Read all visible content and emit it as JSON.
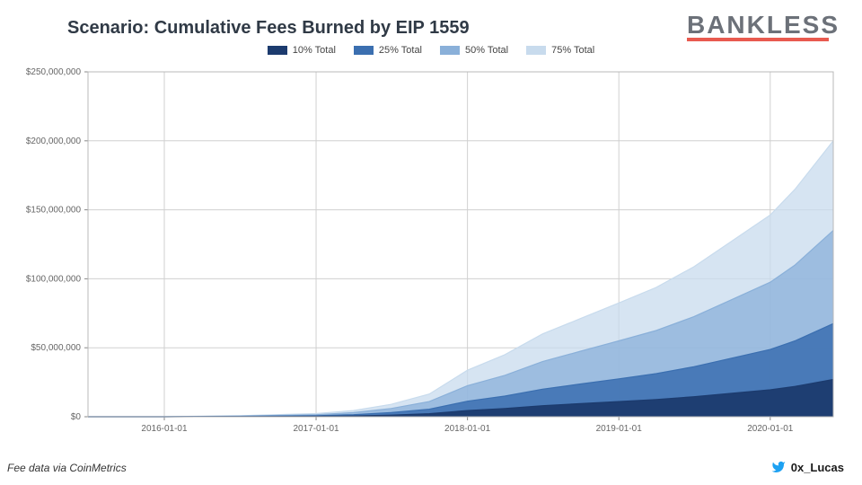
{
  "title": "Scenario: Cumulative Fees Burned by EIP 1559",
  "brand": "BANKLESS",
  "brand_underline_color": "#e85a4f",
  "footer_left_prefix": "Fee data via ",
  "footer_left_source": "CoinMetrics",
  "footer_right_handle": "0x_Lucas",
  "twitter_color": "#1da1f2",
  "chart": {
    "type": "area",
    "background_color": "#ffffff",
    "grid_color": "#d0d0d0",
    "axis_label_color": "#666666",
    "axis_label_fontsize": 10,
    "ylim": [
      0,
      250000000
    ],
    "ytick_step": 50000000,
    "y_ticks": [
      {
        "v": 0,
        "label": "$0"
      },
      {
        "v": 50000000,
        "label": "$50,000,000"
      },
      {
        "v": 100000000,
        "label": "$100,000,000"
      },
      {
        "v": 150000000,
        "label": "$150,000,000"
      },
      {
        "v": 200000000,
        "label": "$200,000,000"
      },
      {
        "v": 250000000,
        "label": "$250,000,000"
      }
    ],
    "x_range": [
      "2015-07-01",
      "2020-06-01"
    ],
    "x_ticks": [
      {
        "d": "2016-01-01",
        "label": "2016-01-01"
      },
      {
        "d": "2017-01-01",
        "label": "2017-01-01"
      },
      {
        "d": "2018-01-01",
        "label": "2018-01-01"
      },
      {
        "d": "2019-01-01",
        "label": "2019-01-01"
      },
      {
        "d": "2020-01-01",
        "label": "2020-01-01"
      }
    ],
    "legend": [
      {
        "label": "10% Total",
        "color": "#1c3b6e"
      },
      {
        "label": "25% Total",
        "color": "#3b6fb0"
      },
      {
        "label": "50% Total",
        "color": "#8ab0d9"
      },
      {
        "label": "75% Total",
        "color": "#c8dbed"
      }
    ],
    "series_order_back_to_front": [
      "75% Total",
      "50% Total",
      "25% Total",
      "10% Total"
    ],
    "series": {
      "10% Total": {
        "color": "#1c3b6e",
        "fill_opacity": 0.95,
        "line_width": 1.2,
        "points": [
          [
            "2015-07-01",
            0
          ],
          [
            "2016-01-01",
            0
          ],
          [
            "2016-07-01",
            100000
          ],
          [
            "2017-01-01",
            300000
          ],
          [
            "2017-04-01",
            600000
          ],
          [
            "2017-07-01",
            1200000
          ],
          [
            "2017-10-01",
            2200000
          ],
          [
            "2018-01-01",
            4500000
          ],
          [
            "2018-04-01",
            6000000
          ],
          [
            "2018-07-01",
            8000000
          ],
          [
            "2018-10-01",
            9500000
          ],
          [
            "2019-01-01",
            11000000
          ],
          [
            "2019-04-01",
            12500000
          ],
          [
            "2019-07-01",
            14500000
          ],
          [
            "2019-10-01",
            17000000
          ],
          [
            "2020-01-01",
            19500000
          ],
          [
            "2020-03-01",
            22000000
          ],
          [
            "2020-06-01",
            27000000
          ]
        ]
      },
      "25% Total": {
        "color": "#3b6fb0",
        "fill_opacity": 0.85,
        "line_width": 1.2,
        "points": [
          [
            "2015-07-01",
            0
          ],
          [
            "2016-01-01",
            0
          ],
          [
            "2016-07-01",
            250000
          ],
          [
            "2017-01-01",
            750000
          ],
          [
            "2017-04-01",
            1500000
          ],
          [
            "2017-07-01",
            3000000
          ],
          [
            "2017-10-01",
            5500000
          ],
          [
            "2018-01-01",
            11250000
          ],
          [
            "2018-04-01",
            15000000
          ],
          [
            "2018-07-01",
            20000000
          ],
          [
            "2018-10-01",
            23750000
          ],
          [
            "2019-01-01",
            27500000
          ],
          [
            "2019-04-01",
            31250000
          ],
          [
            "2019-07-01",
            36250000
          ],
          [
            "2019-10-01",
            42500000
          ],
          [
            "2020-01-01",
            48750000
          ],
          [
            "2020-03-01",
            55000000
          ],
          [
            "2020-06-01",
            67500000
          ]
        ]
      },
      "50% Total": {
        "color": "#8ab0d9",
        "fill_opacity": 0.75,
        "line_width": 1.2,
        "points": [
          [
            "2015-07-01",
            0
          ],
          [
            "2016-01-01",
            0
          ],
          [
            "2016-07-01",
            500000
          ],
          [
            "2017-01-01",
            1500000
          ],
          [
            "2017-04-01",
            3000000
          ],
          [
            "2017-07-01",
            6000000
          ],
          [
            "2017-10-01",
            11000000
          ],
          [
            "2018-01-01",
            22500000
          ],
          [
            "2018-04-01",
            30000000
          ],
          [
            "2018-07-01",
            40000000
          ],
          [
            "2018-10-01",
            47500000
          ],
          [
            "2019-01-01",
            55000000
          ],
          [
            "2019-04-01",
            62500000
          ],
          [
            "2019-07-01",
            72500000
          ],
          [
            "2019-10-01",
            85000000
          ],
          [
            "2020-01-01",
            97500000
          ],
          [
            "2020-03-01",
            110000000
          ],
          [
            "2020-06-01",
            135000000
          ]
        ]
      },
      "75% Total": {
        "color": "#c8dbed",
        "fill_opacity": 0.75,
        "line_width": 1.2,
        "points": [
          [
            "2015-07-01",
            0
          ],
          [
            "2016-01-01",
            0
          ],
          [
            "2016-07-01",
            750000
          ],
          [
            "2017-01-01",
            2250000
          ],
          [
            "2017-04-01",
            4500000
          ],
          [
            "2017-07-01",
            9000000
          ],
          [
            "2017-10-01",
            16500000
          ],
          [
            "2018-01-01",
            33750000
          ],
          [
            "2018-04-01",
            45000000
          ],
          [
            "2018-07-01",
            60000000
          ],
          [
            "2018-10-01",
            71250000
          ],
          [
            "2019-01-01",
            82500000
          ],
          [
            "2019-04-01",
            93750000
          ],
          [
            "2019-07-01",
            108750000
          ],
          [
            "2019-10-01",
            127500000
          ],
          [
            "2020-01-01",
            146250000
          ],
          [
            "2020-03-01",
            165000000
          ],
          [
            "2020-06-01",
            200000000
          ]
        ]
      }
    }
  }
}
